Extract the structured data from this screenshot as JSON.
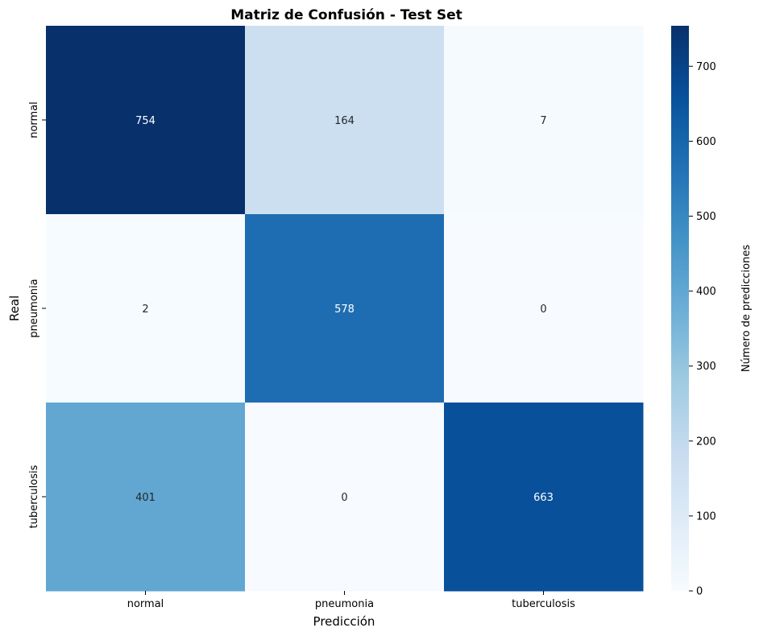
{
  "chart_data": {
    "type": "heatmap",
    "title": "Matriz de Confusión - Test Set",
    "xlabel": "Predicción",
    "ylabel": "Real",
    "x_categories": [
      "normal",
      "pneumonia",
      "tuberculosis"
    ],
    "y_categories": [
      "normal",
      "pneumonia",
      "tuberculosis"
    ],
    "values": [
      [
        754,
        164,
        7
      ],
      [
        2,
        578,
        0
      ],
      [
        401,
        0,
        663
      ]
    ],
    "colorbar": {
      "label": "Número de predicciones",
      "range": [
        0,
        754
      ],
      "ticks": [
        0,
        100,
        200,
        300,
        400,
        500,
        600,
        700
      ]
    },
    "colormap": "Blues",
    "colors": [
      "#f7fbff",
      "#deebf7",
      "#c6dbef",
      "#9ecae1",
      "#6baed6",
      "#4292c6",
      "#2171b5",
      "#08519c",
      "#08306b"
    ]
  }
}
